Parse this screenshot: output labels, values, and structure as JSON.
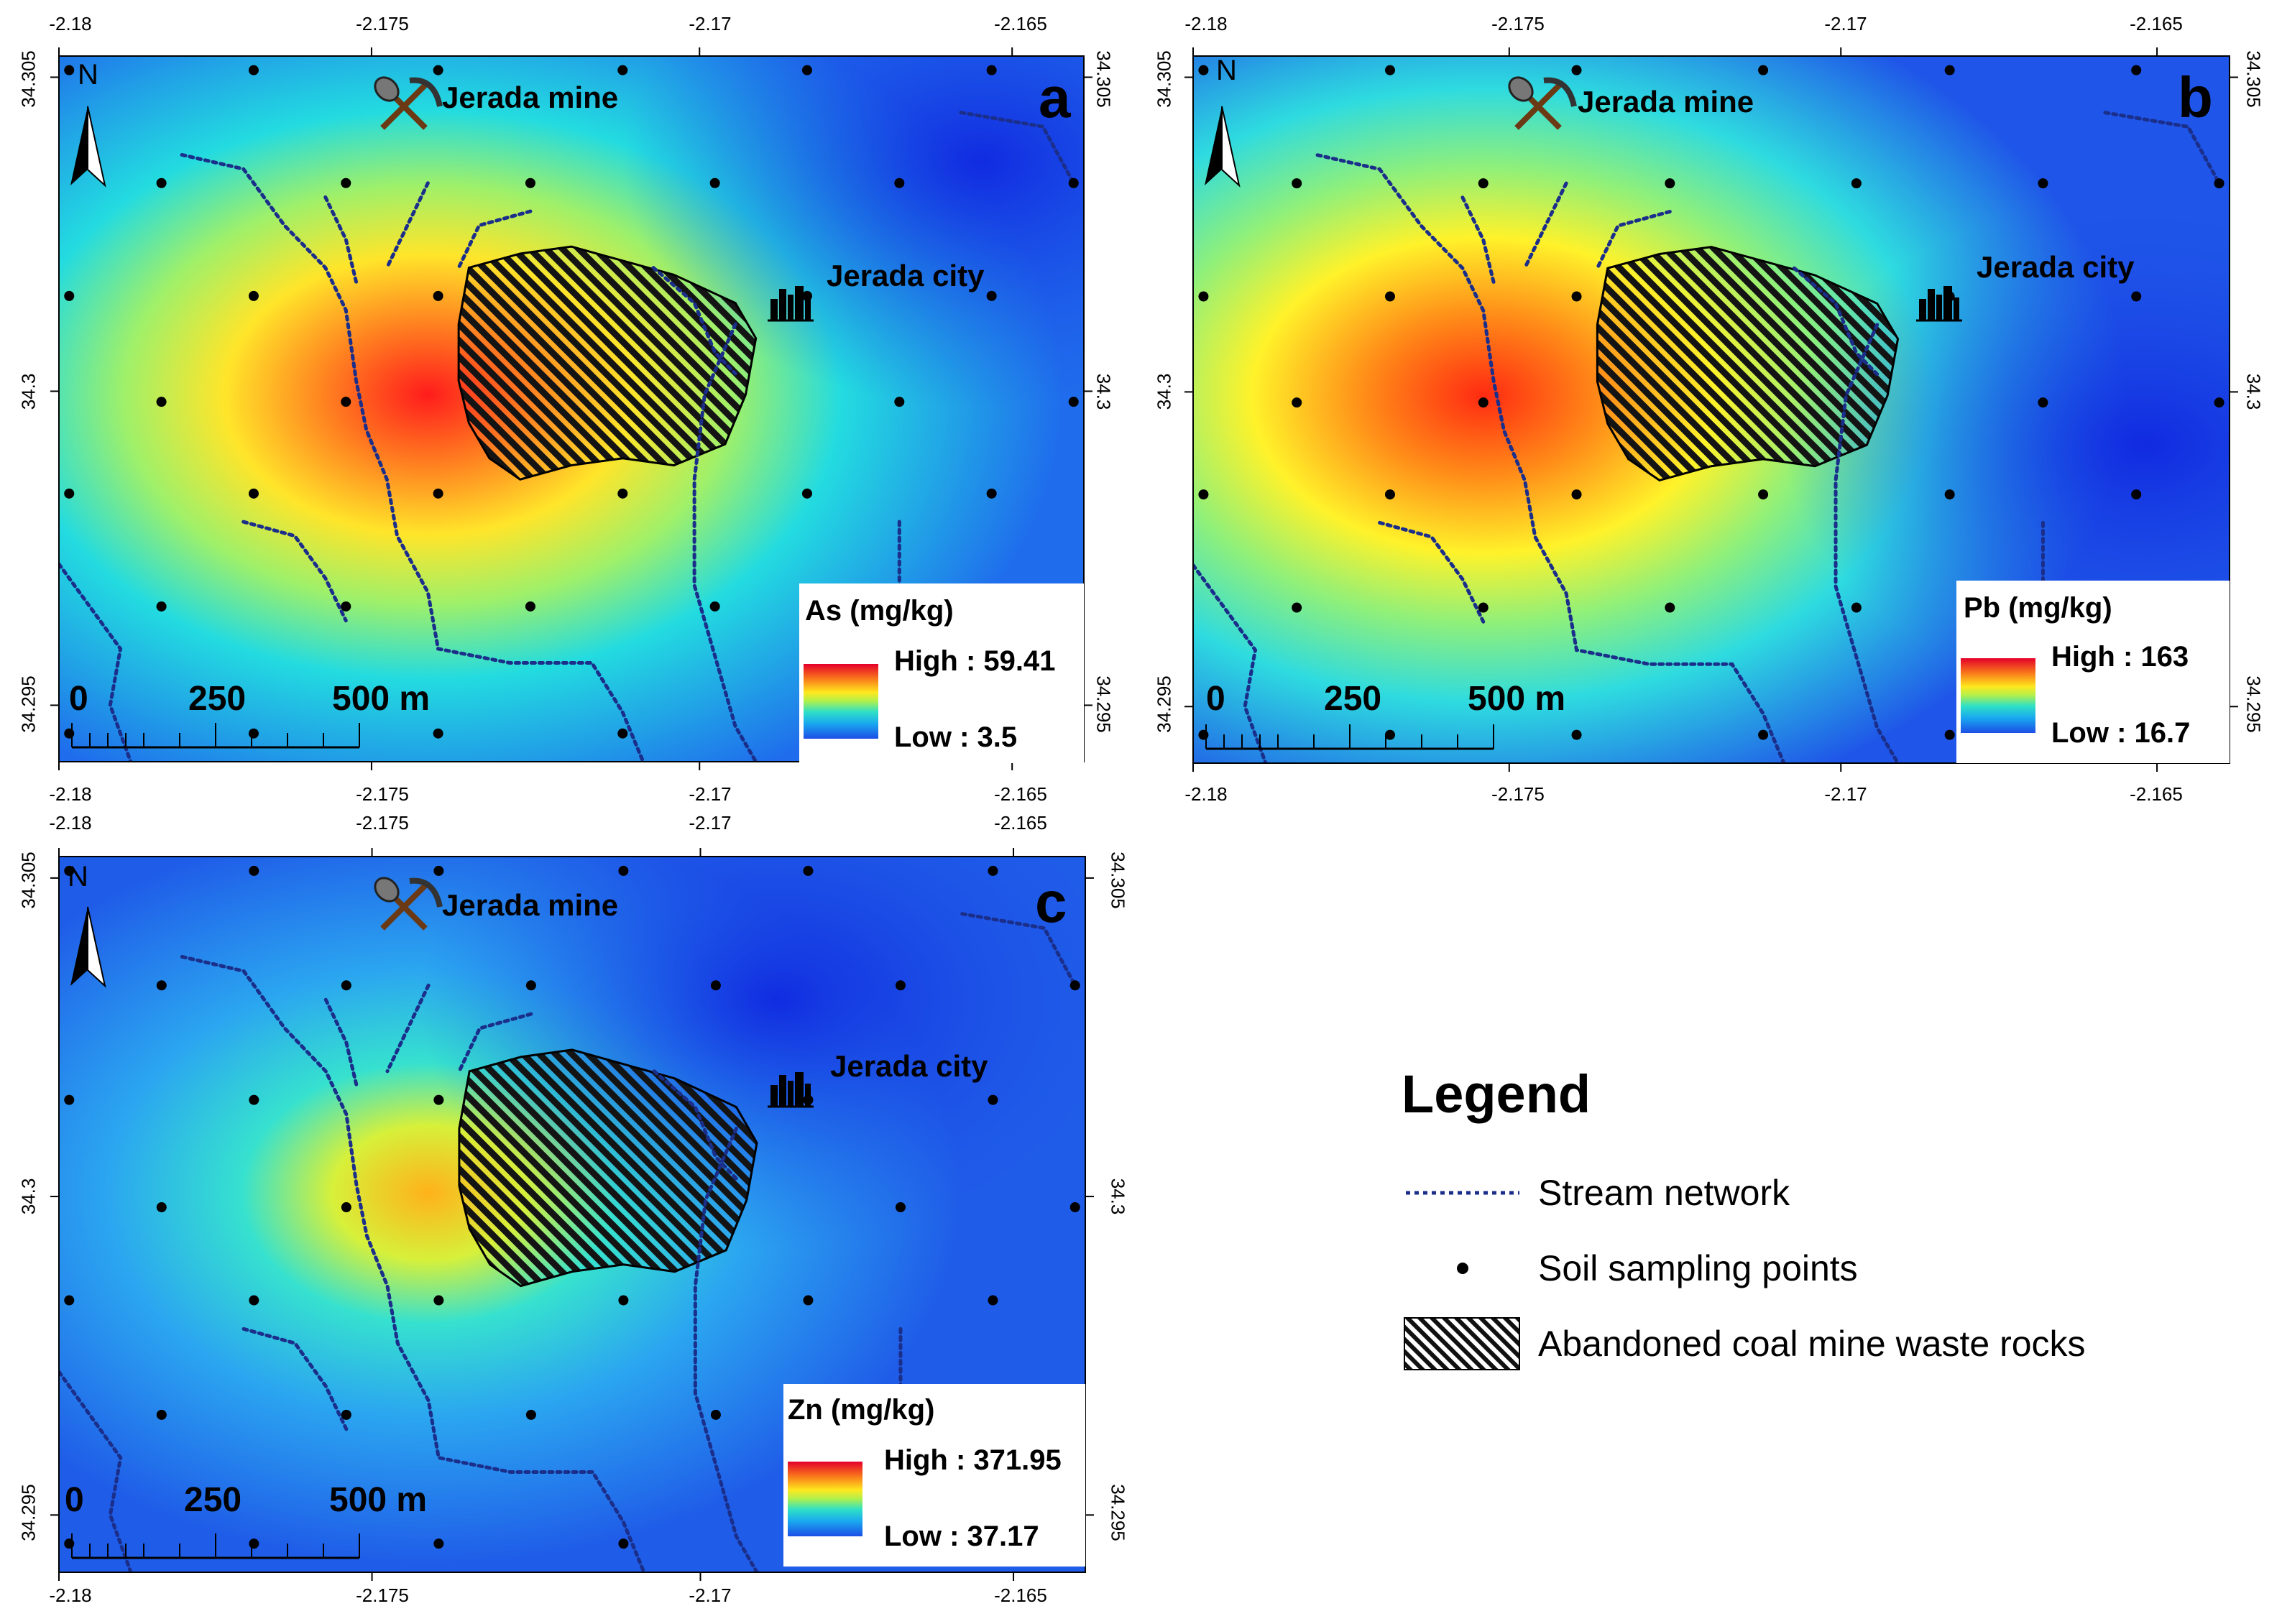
{
  "panels": [
    {
      "letter": "a",
      "legend_title": "As (mg/kg)",
      "high_label": "High : 59.41",
      "low_label": "Low : 3.5",
      "element": "As",
      "unit": "mg/kg",
      "high_value": 59.41,
      "low_value": 3.5,
      "top_lon_ticks": [
        "-2.18",
        "-2.175",
        "-2.17",
        "-2.165"
      ],
      "bottom_lon_ticks": [
        "-2.18",
        "-2.175",
        "-2.17",
        "-2.165"
      ],
      "left_lat_ticks": [
        "34.305",
        "34.3",
        "34.295"
      ],
      "right_lat_ticks": [
        "34.305",
        "34.3",
        "34.295"
      ],
      "mine_label": "Jerada mine",
      "city_label": "Jerada city",
      "north_label": "N",
      "scale_labels": [
        "0",
        "250",
        "500 m"
      ]
    },
    {
      "letter": "b",
      "legend_title": "Pb (mg/kg)",
      "high_label": "High : 163",
      "low_label": "Low : 16.7",
      "element": "Pb",
      "unit": "mg/kg",
      "high_value": 163,
      "low_value": 16.7,
      "top_lon_ticks": [
        "-2.18",
        "-2.175",
        "-2.17",
        "-2.165"
      ],
      "bottom_lon_ticks": [
        "-2.18",
        "-2.175",
        "-2.17",
        "-2.165"
      ],
      "left_lat_ticks": [
        "34.305",
        "34.3",
        "34.295"
      ],
      "right_lat_ticks": [
        "34.305",
        "34.3",
        "34.295"
      ],
      "mine_label": "Jerada mine",
      "city_label": "Jerada city",
      "north_label": "N",
      "scale_labels": [
        "0",
        "250",
        "500 m"
      ]
    },
    {
      "letter": "c",
      "legend_title": "Zn (mg/kg)",
      "high_label": "High : 371.95",
      "low_label": "Low : 37.17",
      "element": "Zn",
      "unit": "mg/kg",
      "high_value": 371.95,
      "low_value": 37.17,
      "top_lon_ticks": [
        "-2.18",
        "-2.175",
        "-2.17",
        "-2.165"
      ],
      "bottom_lon_ticks": [
        "-2.18",
        "-2.175",
        "-2.17",
        "-2.165"
      ],
      "left_lat_ticks": [
        "34.305",
        "34.3",
        "34.295"
      ],
      "right_lat_ticks": [
        "34.305",
        "34.3",
        "34.295"
      ],
      "mine_label": "Jerada mine",
      "city_label": "Jerada city",
      "north_label": "N",
      "scale_labels": [
        "0",
        "250",
        "500 m"
      ]
    }
  ],
  "legend": {
    "title": "Legend",
    "items": [
      {
        "label": "Stream network",
        "symbol": "dotted-line"
      },
      {
        "label": "Soil sampling points",
        "symbol": "dot"
      },
      {
        "label": "Abandoned coal mine waste rocks",
        "symbol": "hatched-box"
      }
    ]
  },
  "colors": {
    "high": "#e4002b",
    "mid": "#ffe81e",
    "low": "#1c4ee6",
    "stream": "#1a2e8a",
    "hatch": "#111111"
  }
}
